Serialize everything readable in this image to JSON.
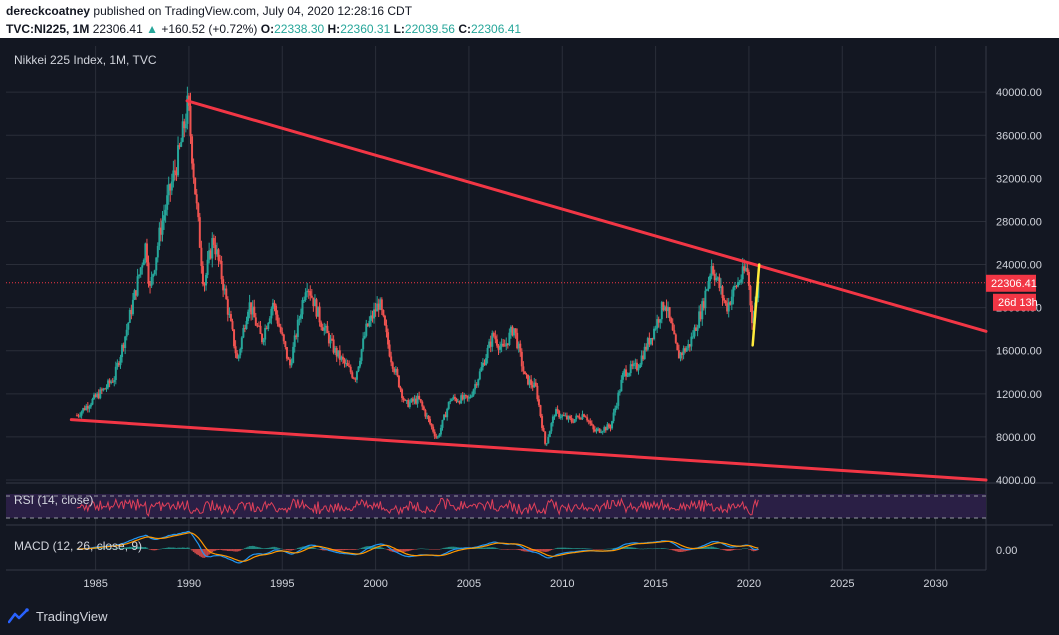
{
  "header": {
    "author": "dereckcoatney",
    "published_text": "published on TradingView.com, July 04, 2020 12:28:16 CDT",
    "ticker": "TVC:NI225, 1M",
    "last": "22306.41",
    "change": "+160.52 (+0.72%)",
    "open_label": "O:",
    "open": "22338.30",
    "high_label": "H:",
    "high": "22360.31",
    "low_label": "L:",
    "low": "22039.56",
    "close_label": "C:",
    "close": "22306.41"
  },
  "main_pane": {
    "title": "Nikkei 225 Index, 1M, TVC",
    "price_tag": "22306.41",
    "countdown_tag": "26d 13h"
  },
  "rsi_pane": {
    "title": "RSI (14, close)"
  },
  "macd_pane": {
    "title": "MACD (12, 26, close, 9)",
    "zero_label": "0.00"
  },
  "footer": {
    "brand": "TradingView"
  },
  "colors": {
    "background": "#131722",
    "up": "#26a69a",
    "down": "#ef5350",
    "trendline": "#f23645",
    "highlight": "#ffeb3b",
    "rsi_line": "#e0405a",
    "rsi_band": "#2a1f45",
    "macd_line": "#2196f3",
    "signal_line": "#ff9800"
  },
  "chart_data": {
    "type": "candlestick",
    "title": "Nikkei 225 Index, 1M, TVC",
    "x_ticks": [
      1985,
      1990,
      1995,
      2000,
      2005,
      2010,
      2015,
      2020,
      2025,
      2030
    ],
    "y_ticks": [
      4000,
      8000,
      12000,
      16000,
      20000,
      24000,
      28000,
      32000,
      36000,
      40000
    ],
    "ylim": [
      4000,
      41500
    ],
    "xlim": [
      1980.2,
      2032.7
    ],
    "last_price": 22306.41,
    "price_waypoints": [
      [
        1984.0,
        10000
      ],
      [
        1984.6,
        11000
      ],
      [
        1985.5,
        12500
      ],
      [
        1986.0,
        13500
      ],
      [
        1986.6,
        17500
      ],
      [
        1987.2,
        22000
      ],
      [
        1987.7,
        26000
      ],
      [
        1987.9,
        21500
      ],
      [
        1988.5,
        27500
      ],
      [
        1989.0,
        31000
      ],
      [
        1989.5,
        34500
      ],
      [
        1989.95,
        38900
      ],
      [
        1990.4,
        29500
      ],
      [
        1990.8,
        22000
      ],
      [
        1991.3,
        26500
      ],
      [
        1991.8,
        22500
      ],
      [
        1992.6,
        15000
      ],
      [
        1993.2,
        20500
      ],
      [
        1993.9,
        17000
      ],
      [
        1994.5,
        20500
      ],
      [
        1995.4,
        14500
      ],
      [
        1996.3,
        22500
      ],
      [
        1997.0,
        19000
      ],
      [
        1997.8,
        16000
      ],
      [
        1998.9,
        13500
      ],
      [
        1999.5,
        18000
      ],
      [
        2000.2,
        20500
      ],
      [
        2000.8,
        15500
      ],
      [
        2001.6,
        11000
      ],
      [
        2002.3,
        11500
      ],
      [
        2003.3,
        7800
      ],
      [
        2004.0,
        11500
      ],
      [
        2005.0,
        11500
      ],
      [
        2005.6,
        14000
      ],
      [
        2006.3,
        17500
      ],
      [
        2006.8,
        16000
      ],
      [
        2007.4,
        18200
      ],
      [
        2008.0,
        13500
      ],
      [
        2008.6,
        12500
      ],
      [
        2009.1,
        7200
      ],
      [
        2009.6,
        10300
      ],
      [
        2010.5,
        9500
      ],
      [
        2011.2,
        10200
      ],
      [
        2011.7,
        8500
      ],
      [
        2012.6,
        9000
      ],
      [
        2013.3,
        14000
      ],
      [
        2014.0,
        14500
      ],
      [
        2014.8,
        17500
      ],
      [
        2015.5,
        20600
      ],
      [
        2016.2,
        15500
      ],
      [
        2016.8,
        16500
      ],
      [
        2017.5,
        20000
      ],
      [
        2018.0,
        24000
      ],
      [
        2018.8,
        20000
      ],
      [
        2019.3,
        22000
      ],
      [
        2019.9,
        23700
      ],
      [
        2020.2,
        18500
      ],
      [
        2020.5,
        22300
      ]
    ],
    "trendlines": [
      {
        "name": "upper",
        "from": [
          1989.9,
          39200
        ],
        "to": [
          2032.7,
          17800
        ]
      },
      {
        "name": "lower",
        "from": [
          1983.7,
          9600
        ],
        "to": [
          2032.7,
          4000
        ]
      }
    ],
    "highlight_segment": {
      "from": [
        2020.2,
        16500
      ],
      "to": [
        2020.55,
        24000
      ]
    },
    "rsi_levels": [
      70,
      30
    ],
    "macd_zero": 0.0
  }
}
